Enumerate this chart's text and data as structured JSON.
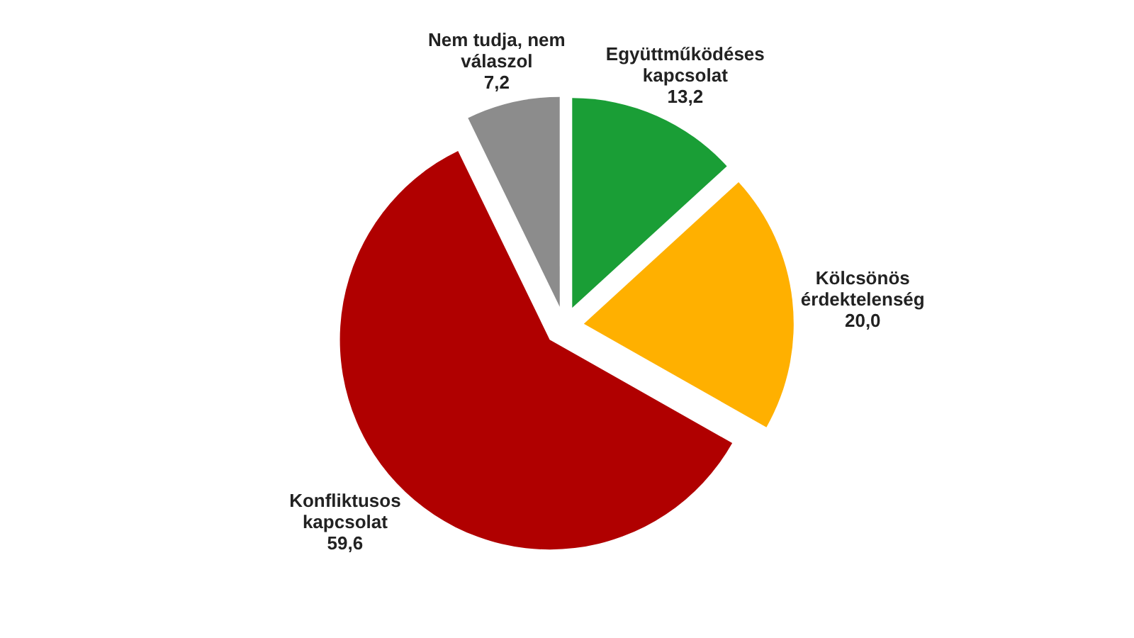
{
  "chart_data": {
    "type": "pie",
    "categories": [
      "Együttműködéses kapcsolat",
      "Kölcsönös érdektelenség",
      "Konfliktusos kapcsolat",
      "Nem tudja, nem válaszol"
    ],
    "values": [
      13.2,
      20.0,
      59.6,
      7.2
    ],
    "colors": [
      "#1a9e36",
      "#ffb000",
      "#b00000",
      "#8c8c8c"
    ],
    "value_labels": [
      "13,2",
      "20,0",
      "59,6",
      "7,2"
    ]
  }
}
